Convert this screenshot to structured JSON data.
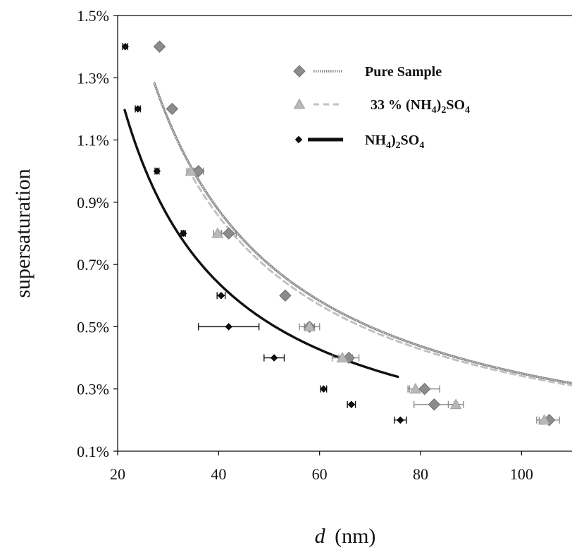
{
  "chart_data": {
    "type": "scatter",
    "title": "",
    "xlabel_var": "d",
    "xlabel_unit": "(nm)",
    "ylabel": "supersaturation",
    "xlim": [
      20,
      110
    ],
    "ylim": [
      0.1,
      1.5
    ],
    "x_ticks": [
      20,
      40,
      60,
      80,
      100
    ],
    "y_ticks": [
      0.1,
      0.3,
      0.5,
      0.7,
      0.9,
      1.1,
      1.3,
      1.5
    ],
    "y_tick_labels": [
      "0.1%",
      "0.3%",
      "0.5%",
      "0.7%",
      "0.9%",
      "1.1%",
      "1.3%",
      "1.5%"
    ],
    "grid": false,
    "legend_position": "top-right",
    "series": [
      {
        "key": "pure",
        "name": "Pure Sample",
        "marker": "diamond",
        "color": "#8c8c8c",
        "line_style": "dotted-thick",
        "x": [
          28.3,
          30.8,
          36.0,
          42.0,
          53.2,
          58.0,
          65.8,
          80.8,
          82.7,
          105.5
        ],
        "y": [
          1.4,
          1.2,
          1.0,
          0.8,
          0.6,
          0.5,
          0.4,
          0.3,
          0.25,
          0.2
        ],
        "x_err": [
          0.4,
          0.5,
          1.0,
          1.5,
          0.5,
          2.0,
          2.0,
          3.0,
          4.0,
          2.0
        ],
        "fit_k": 35.0,
        "fit_x_range": [
          27.3,
          110
        ]
      },
      {
        "key": "mix33",
        "name_main": "33 % (NH",
        "name_sub1": "4",
        "name_mid": ")",
        "name_sub2": "2",
        "name_end": "SO",
        "name_sub3": "4",
        "marker": "triangle",
        "color": "#b8b8b8",
        "line_style": "dashed",
        "x": [
          34.5,
          39.8,
          58.0,
          64.5,
          79.0,
          87.0,
          104.5
        ],
        "y": [
          1.0,
          0.8,
          0.5,
          0.4,
          0.3,
          0.25,
          0.2
        ],
        "x_err": [
          0.8,
          0.8,
          1.0,
          2.0,
          1.5,
          1.5,
          1.5
        ],
        "fit_k": 34.2,
        "fit_x_range": [
          34.0,
          110
        ]
      },
      {
        "key": "as",
        "name_main": "NH",
        "name_sub1": "4",
        "name_mid": ")",
        "name_sub2": "2",
        "name_end": "SO",
        "name_sub3": "4",
        "marker": "small-diamond",
        "color": "#111111",
        "line_style": "solid-thick",
        "x": [
          21.5,
          24.0,
          27.8,
          33.0,
          40.5,
          42.0,
          51.0,
          60.8,
          66.3,
          76.0
        ],
        "y": [
          1.4,
          1.2,
          1.0,
          0.8,
          0.6,
          0.5,
          0.4,
          0.3,
          0.25,
          0.2
        ],
        "x_err": [
          0.5,
          0.5,
          0.4,
          0.4,
          0.8,
          6.0,
          2.0,
          0.6,
          0.8,
          1.2
        ],
        "fit_k": 25.6,
        "fit_x_range": [
          21.4,
          75.5
        ]
      }
    ]
  }
}
